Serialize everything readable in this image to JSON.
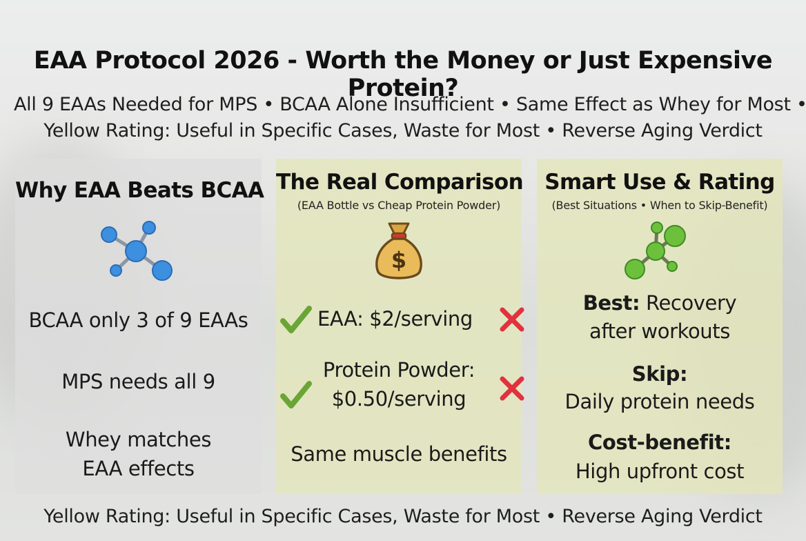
{
  "header": {
    "title": "EAA Protocol 2026 - Worth the Money or Just Expensive Protein?",
    "subtitle_line1": "All 9 EAAs Needed for MPS • BCAA Alone Insufficient • Same Effect as Whey for Most •",
    "subtitle_line2": "Yellow Rating: Useful in Specific Cases, Waste for Most • Reverse Aging Verdict"
  },
  "left_panel": {
    "title": "Why EAA Beats BCAA",
    "icon": "molecule-icon",
    "point1": "BCAA only 3 of 9 EAAs",
    "point2": "MPS needs all 9",
    "point3_line1": "Whey matches",
    "point3_line2": "EAA effects"
  },
  "middle_panel": {
    "title": "The Real Comparison",
    "subtitle": "(EAA Bottle vs Cheap Protein Powder)",
    "icon": "money-bag-icon",
    "row1": "EAA: $2/serving",
    "row2_line1": "Protein Powder:",
    "row2_line2": "$0.50/serving",
    "footer_text": "Same muscle benefits"
  },
  "right_panel": {
    "title": "Smart Use & Rating",
    "subtitle": "(Best Situations • When to Skip-Benefit)",
    "icon": "molecule-icon",
    "best_label": "Best:",
    "best_text1": " Recovery",
    "best_text2": "after workouts",
    "skip_label": "Skip:",
    "skip_text": "Daily protein needs",
    "cost_label": "Cost-benefit:",
    "cost_text": "High upfront cost"
  },
  "footer": {
    "text": "Yellow Rating: Useful in Specific Cases, Waste for Most • Reverse Aging Verdict"
  },
  "colors": {
    "check": "#6aa536",
    "cross": "#e0323f",
    "blue_atom": "#3d8fe0",
    "green_atom": "#6cc03c"
  }
}
